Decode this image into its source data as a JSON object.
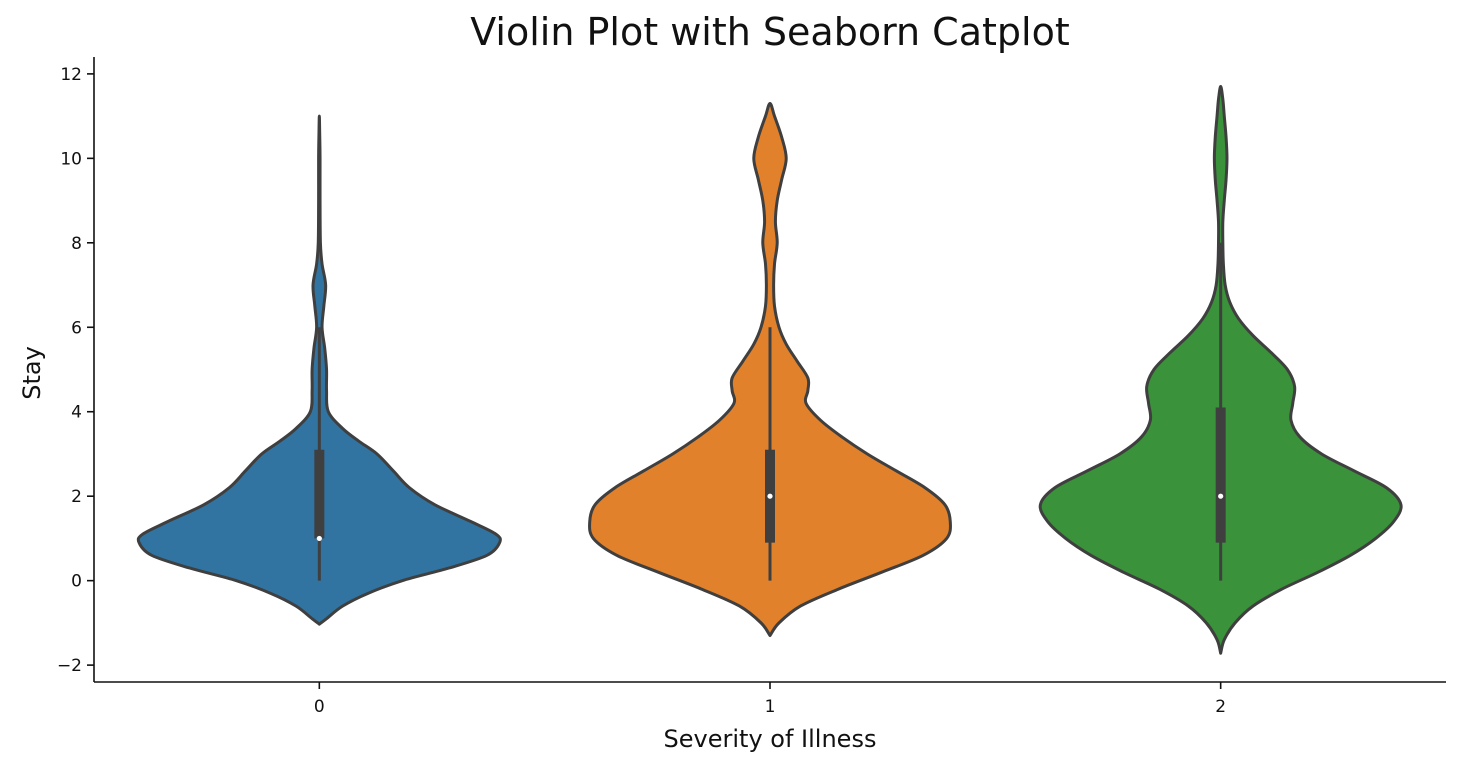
{
  "chart_data": {
    "type": "violin",
    "title": "Violin Plot with Seaborn Catplot",
    "xlabel": "Severity of Illness",
    "ylabel": "Stay",
    "categories": [
      "0",
      "1",
      "2"
    ],
    "y_ticks": [
      -2,
      0,
      2,
      4,
      6,
      8,
      10,
      12
    ],
    "y_tick_labels": [
      "−2",
      "0",
      "2",
      "4",
      "6",
      "8",
      "10",
      "12"
    ],
    "ylim": [
      -2.4,
      12.4
    ],
    "grid": false,
    "legend": "none",
    "colors": [
      "#3274a1",
      "#e1812c",
      "#3a923a"
    ],
    "violins": [
      {
        "category": "0",
        "color": "#3274a1",
        "density_profile": [
          [
            -1.03,
            0.0
          ],
          [
            -0.9,
            0.04
          ],
          [
            -0.6,
            0.13
          ],
          [
            -0.3,
            0.27
          ],
          [
            0.0,
            0.46
          ],
          [
            0.3,
            0.72
          ],
          [
            0.6,
            0.93
          ],
          [
            0.9,
            1.0
          ],
          [
            1.1,
            0.98
          ],
          [
            1.4,
            0.84
          ],
          [
            1.8,
            0.64
          ],
          [
            2.2,
            0.5
          ],
          [
            2.6,
            0.41
          ],
          [
            3.0,
            0.32
          ],
          [
            3.3,
            0.22
          ],
          [
            3.6,
            0.13
          ],
          [
            4.0,
            0.05
          ],
          [
            4.5,
            0.04
          ],
          [
            5.0,
            0.04
          ],
          [
            5.5,
            0.03
          ],
          [
            6.0,
            0.015
          ],
          [
            6.5,
            0.025
          ],
          [
            7.0,
            0.035
          ],
          [
            7.5,
            0.015
          ],
          [
            8.0,
            0.006
          ],
          [
            9.0,
            0.004
          ],
          [
            10.0,
            0.004
          ],
          [
            10.6,
            0.002
          ],
          [
            11.0,
            0.0
          ]
        ],
        "whisker": [
          0,
          6
        ],
        "quartiles": [
          1,
          3.1
        ],
        "median": 1
      },
      {
        "category": "1",
        "color": "#e1812c",
        "density_profile": [
          [
            -1.3,
            0.0
          ],
          [
            -1.0,
            0.05
          ],
          [
            -0.6,
            0.17
          ],
          [
            -0.2,
            0.38
          ],
          [
            0.2,
            0.62
          ],
          [
            0.6,
            0.85
          ],
          [
            1.0,
            0.98
          ],
          [
            1.4,
            1.0
          ],
          [
            1.8,
            0.97
          ],
          [
            2.2,
            0.86
          ],
          [
            2.6,
            0.7
          ],
          [
            3.0,
            0.54
          ],
          [
            3.4,
            0.4
          ],
          [
            3.8,
            0.28
          ],
          [
            4.2,
            0.2
          ],
          [
            4.5,
            0.21
          ],
          [
            4.8,
            0.21
          ],
          [
            5.2,
            0.15
          ],
          [
            5.6,
            0.09
          ],
          [
            6.0,
            0.05
          ],
          [
            6.5,
            0.025
          ],
          [
            7.0,
            0.02
          ],
          [
            7.5,
            0.025
          ],
          [
            8.0,
            0.04
          ],
          [
            8.5,
            0.03
          ],
          [
            9.0,
            0.04
          ],
          [
            9.5,
            0.065
          ],
          [
            10.0,
            0.09
          ],
          [
            10.5,
            0.065
          ],
          [
            11.0,
            0.025
          ],
          [
            11.3,
            0.0
          ]
        ],
        "whisker": [
          0,
          6
        ],
        "quartiles": [
          0.9,
          3.1
        ],
        "median": 2
      },
      {
        "category": "2",
        "color": "#3a923a",
        "density_profile": [
          [
            -1.72,
            0.0
          ],
          [
            -1.4,
            0.02
          ],
          [
            -1.0,
            0.08
          ],
          [
            -0.6,
            0.18
          ],
          [
            -0.2,
            0.34
          ],
          [
            0.2,
            0.54
          ],
          [
            0.6,
            0.72
          ],
          [
            1.0,
            0.86
          ],
          [
            1.4,
            0.96
          ],
          [
            1.8,
            1.0
          ],
          [
            2.2,
            0.92
          ],
          [
            2.6,
            0.74
          ],
          [
            3.0,
            0.56
          ],
          [
            3.4,
            0.44
          ],
          [
            3.8,
            0.39
          ],
          [
            4.2,
            0.4
          ],
          [
            4.6,
            0.41
          ],
          [
            5.0,
            0.37
          ],
          [
            5.4,
            0.28
          ],
          [
            5.8,
            0.18
          ],
          [
            6.2,
            0.1
          ],
          [
            6.6,
            0.05
          ],
          [
            7.0,
            0.025
          ],
          [
            7.5,
            0.015
          ],
          [
            8.0,
            0.012
          ],
          [
            8.5,
            0.012
          ],
          [
            9.0,
            0.02
          ],
          [
            9.5,
            0.03
          ],
          [
            10.0,
            0.035
          ],
          [
            10.5,
            0.03
          ],
          [
            11.0,
            0.02
          ],
          [
            11.4,
            0.012
          ],
          [
            11.7,
            0.0
          ]
        ],
        "whisker": [
          0,
          8
        ],
        "quartiles": [
          0.9,
          4.1
        ],
        "median": 2
      }
    ]
  }
}
